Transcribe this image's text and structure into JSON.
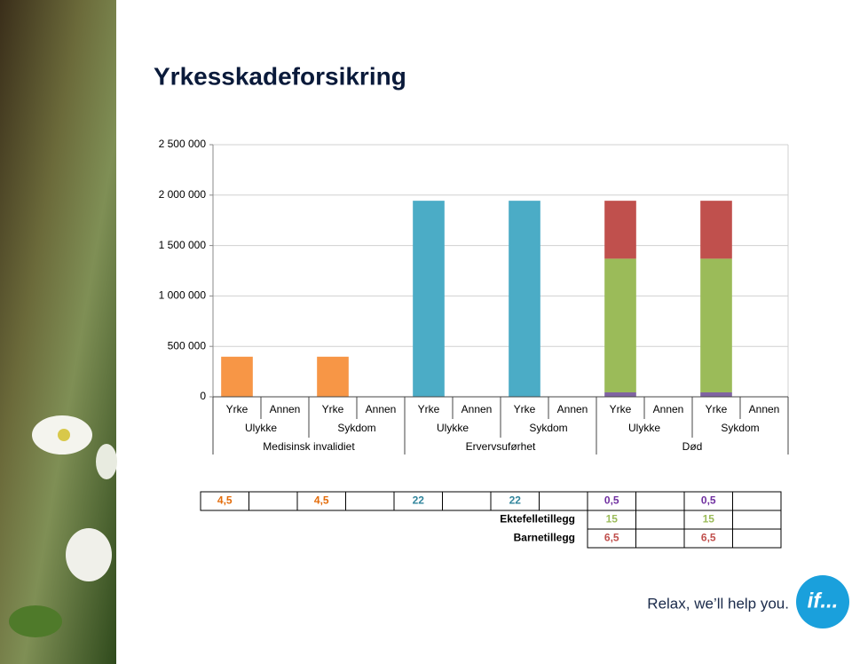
{
  "title": "Yrkesskadeforsikring",
  "chart_data": {
    "type": "bar",
    "stacked": true,
    "categories": [
      "Yrke",
      "Annen",
      "Yrke",
      "Annen",
      "Yrke",
      "Annen",
      "Yrke",
      "Annen",
      "Yrke",
      "Annen",
      "Yrke",
      "Annen"
    ],
    "category_groups": [
      "Ulykke",
      "Sykdom",
      "Ulykke",
      "Sykdom",
      "Ulykke",
      "Sykdom"
    ],
    "category_supergroups": [
      "Medisinsk invalidiet",
      "Ervervsuførhet",
      "Død"
    ],
    "series": [
      {
        "color": "#f79646",
        "values": [
          397665,
          null,
          397665,
          null,
          null,
          null,
          null,
          null,
          null,
          null,
          null,
          null
        ]
      },
      {
        "color": "#4bacc6",
        "values": [
          null,
          null,
          null,
          null,
          1944140,
          null,
          1944140,
          null,
          null,
          null,
          null,
          null
        ]
      },
      {
        "color": "#8064a2",
        "values": [
          null,
          null,
          null,
          null,
          null,
          null,
          null,
          null,
          44185,
          null,
          44185,
          null
        ]
      },
      {
        "color": "#9bbb59",
        "values": [
          null,
          null,
          null,
          null,
          null,
          null,
          null,
          null,
          1325550,
          null,
          1325550,
          null
        ]
      },
      {
        "color": "#c0504d",
        "values": [
          null,
          null,
          null,
          null,
          null,
          null,
          null,
          null,
          574405,
          null,
          574405,
          null
        ]
      }
    ],
    "ylim": [
      0,
      2500000
    ],
    "yticks": [
      0,
      {
        "value": 500000,
        "label": "500 000"
      },
      {
        "value": 1000000,
        "label": "1 000 000"
      },
      {
        "value": 1500000,
        "label": "1 500 000"
      },
      {
        "value": 2000000,
        "label": "2 000 000"
      },
      {
        "value": 2500000,
        "label": "2 500 000"
      }
    ],
    "grid": true
  },
  "table": {
    "rows": [
      {
        "cells": [
          "4,5",
          "4,5",
          "22",
          "22",
          "0,5",
          "0,5"
        ],
        "colors": [
          "#e46c0a",
          "#e46c0a",
          "#31859c",
          "#31859c",
          "#7030a0",
          "#7030a0"
        ]
      },
      {
        "label": "Ektefelletillegg",
        "cells": [
          "15",
          "15"
        ],
        "color": "#9bbb59"
      },
      {
        "label": "Barnetillegg",
        "cells": [
          "6,5",
          "6,5"
        ],
        "color": "#c0504d"
      }
    ]
  },
  "footer": {
    "slogan": "Relax, we’ll help you.",
    "logo": "if..."
  }
}
